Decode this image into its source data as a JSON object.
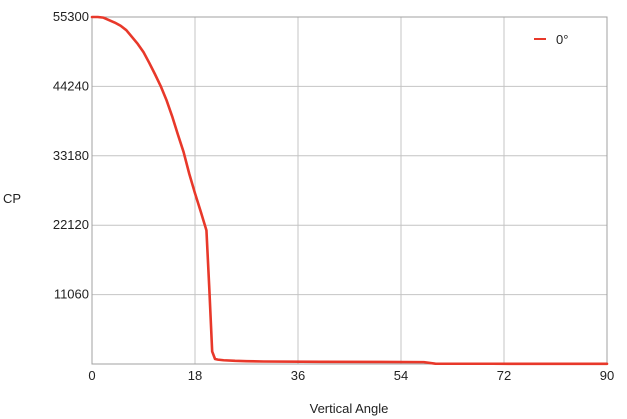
{
  "chart_data": {
    "type": "line",
    "xlabel": "Vertical Angle",
    "ylabel": "CP",
    "xlim": [
      0,
      90
    ],
    "ylim": [
      0,
      55300
    ],
    "xticks": [
      0,
      18,
      36,
      54,
      72,
      90
    ],
    "yticks": [
      11060,
      22120,
      33180,
      44240,
      55300
    ],
    "grid": true,
    "legend_position": "top-right",
    "series": [
      {
        "name": "0°",
        "color": "#e8382a",
        "x": [
          0,
          1,
          2,
          3,
          4,
          5,
          6,
          7,
          8,
          9,
          10,
          11,
          12,
          13,
          14,
          15,
          16,
          17,
          18,
          19,
          20,
          20.5,
          21,
          21.5,
          22,
          23,
          25,
          27,
          30,
          40,
          50,
          58,
          60,
          70,
          80,
          90
        ],
        "y": [
          55300,
          55300,
          55200,
          54800,
          54400,
          53900,
          53200,
          52100,
          51000,
          49700,
          48000,
          46200,
          44300,
          42100,
          39500,
          36600,
          33800,
          30300,
          27200,
          24300,
          21300,
          12000,
          2000,
          800,
          700,
          600,
          500,
          450,
          400,
          350,
          330,
          300,
          50,
          40,
          30,
          30
        ]
      }
    ]
  }
}
